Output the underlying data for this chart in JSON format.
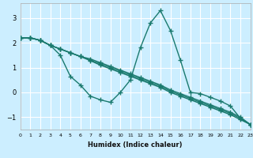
{
  "xlabel": "Humidex (Indice chaleur)",
  "background_color": "#cceeff",
  "grid_color": "#ffffff",
  "line_color": "#1a7a6e",
  "x_values": [
    0,
    1,
    2,
    3,
    4,
    5,
    6,
    7,
    8,
    9,
    10,
    11,
    12,
    13,
    14,
    15,
    16,
    17,
    18,
    19,
    20,
    21,
    22,
    23
  ],
  "series": [
    [
      2.2,
      2.2,
      2.1,
      1.9,
      1.5,
      0.65,
      0.3,
      -0.15,
      -0.3,
      -0.4,
      0.0,
      0.5,
      1.8,
      2.8,
      3.3,
      2.5,
      1.3,
      0.0,
      -0.05,
      -0.2,
      -0.35,
      -0.55,
      -1.05,
      -1.3
    ],
    [
      2.2,
      2.2,
      2.1,
      1.9,
      1.75,
      1.6,
      1.45,
      1.35,
      1.2,
      1.05,
      0.9,
      0.75,
      0.6,
      0.45,
      0.3,
      0.1,
      -0.05,
      -0.2,
      -0.35,
      -0.5,
      -0.65,
      -0.8,
      -1.0,
      -1.3
    ],
    [
      2.2,
      2.2,
      2.1,
      1.9,
      1.75,
      1.6,
      1.45,
      1.3,
      1.15,
      1.0,
      0.85,
      0.7,
      0.55,
      0.4,
      0.25,
      0.05,
      -0.1,
      -0.25,
      -0.4,
      -0.55,
      -0.7,
      -0.85,
      -1.05,
      -1.3
    ],
    [
      2.2,
      2.2,
      2.1,
      1.9,
      1.75,
      1.6,
      1.45,
      1.28,
      1.1,
      0.95,
      0.8,
      0.65,
      0.5,
      0.35,
      0.2,
      0.0,
      -0.15,
      -0.3,
      -0.45,
      -0.6,
      -0.75,
      -0.9,
      -1.1,
      -1.3
    ]
  ],
  "xlim": [
    0,
    23
  ],
  "ylim": [
    -1.5,
    3.6
  ],
  "yticks": [
    -1,
    0,
    1,
    2,
    3
  ],
  "xticks": [
    0,
    1,
    2,
    3,
    4,
    5,
    6,
    7,
    8,
    9,
    10,
    11,
    12,
    13,
    14,
    15,
    16,
    17,
    18,
    19,
    20,
    21,
    22,
    23
  ],
  "xtick_labels": [
    "0",
    "1",
    "2",
    "3",
    "4",
    "5",
    "6",
    "7",
    "8",
    "9",
    "10",
    "11",
    "12",
    "13",
    "14",
    "15",
    "16",
    "17",
    "18",
    "19",
    "20",
    "21",
    "22",
    "23"
  ],
  "marker": "+",
  "marker_size": 5,
  "linewidth": 1.0
}
